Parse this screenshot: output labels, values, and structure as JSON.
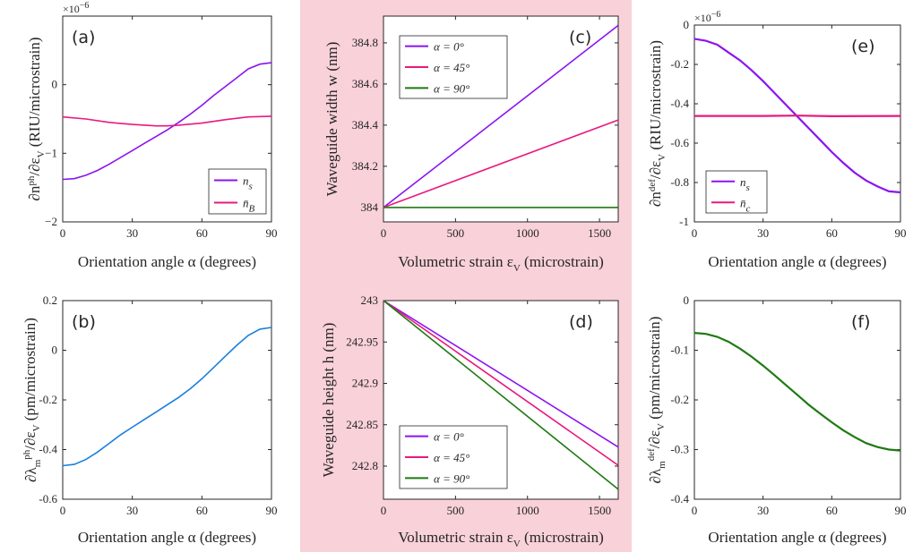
{
  "background": {
    "color": "#f9d1d9"
  },
  "chart_data": [
    {
      "id": "a",
      "type": "line",
      "panel_label": "(a)",
      "xlabel": "Orientation angle α (degrees)",
      "ylabel": "∂n^ph/∂ε_V (RIU/microstrain)",
      "xlim": [
        0,
        90
      ],
      "ylim": [
        -2,
        1
      ],
      "xticks": [
        "0",
        "30",
        "60",
        "90"
      ],
      "yticks": [
        "-2",
        "-1",
        "0"
      ],
      "yticklabels": [
        "−2",
        "−1",
        "0"
      ],
      "exponent_label": "×10^−6",
      "legend": "bottom-right",
      "series": [
        {
          "name": "n_s",
          "color": "#8b14f0",
          "x": [
            0,
            5,
            10,
            15,
            20,
            25,
            30,
            35,
            40,
            45,
            50,
            55,
            60,
            65,
            70,
            75,
            80,
            85,
            90
          ],
          "y": [
            -1.38,
            -1.37,
            -1.32,
            -1.25,
            -1.16,
            -1.06,
            -0.96,
            -0.86,
            -0.76,
            -0.66,
            -0.55,
            -0.43,
            -0.3,
            -0.16,
            -0.03,
            0.1,
            0.23,
            0.3,
            0.32
          ]
        },
        {
          "name": "n̄_B",
          "color": "#e8197e",
          "x": [
            0,
            10,
            20,
            30,
            40,
            45,
            50,
            60,
            70,
            80,
            90
          ],
          "y": [
            -0.47,
            -0.5,
            -0.55,
            -0.58,
            -0.6,
            -0.6,
            -0.59,
            -0.56,
            -0.51,
            -0.47,
            -0.46
          ]
        }
      ]
    },
    {
      "id": "b",
      "type": "line",
      "panel_label": "(b)",
      "xlabel": "Orientation angle α (degrees)",
      "ylabel": "∂λ_m^ph/∂ε_V (pm/microstrain)",
      "xlim": [
        0,
        90
      ],
      "ylim": [
        -0.6,
        0.2
      ],
      "xticks": [
        "0",
        "30",
        "60",
        "90"
      ],
      "yticks": [
        "-0.6",
        "-0.4",
        "-0.2",
        "0",
        "0.2"
      ],
      "yticklabels": [
        "-0.6",
        "-0.4",
        "-0.2",
        "0",
        "0.2"
      ],
      "series": [
        {
          "name": "",
          "color": "#1a7fe0",
          "x": [
            0,
            5,
            10,
            15,
            20,
            25,
            30,
            35,
            40,
            45,
            50,
            55,
            60,
            65,
            70,
            75,
            80,
            85,
            90
          ],
          "y": [
            -0.465,
            -0.46,
            -0.44,
            -0.41,
            -0.375,
            -0.34,
            -0.31,
            -0.28,
            -0.25,
            -0.22,
            -0.19,
            -0.155,
            -0.115,
            -0.07,
            -0.025,
            0.02,
            0.06,
            0.085,
            0.092
          ]
        }
      ]
    },
    {
      "id": "c",
      "type": "line",
      "panel_label": "(c)",
      "xlabel": "Volumetric strain ε_V (microstrain)",
      "ylabel": "Waveguide width w (nm)",
      "xlim": [
        0,
        1630
      ],
      "ylim": [
        383.93,
        384.93
      ],
      "xticks": [
        "0",
        "500",
        "1000",
        "1500"
      ],
      "yticks": [
        "384",
        "384.2",
        "384.4",
        "384.6",
        "384.8"
      ],
      "yticklabels": [
        "384",
        "384.2",
        "384.4",
        "384.6",
        "384.8"
      ],
      "legend": "top-left",
      "series": [
        {
          "name": "α = 0°",
          "color": "#8b14f0",
          "x": [
            0,
            1630
          ],
          "y": [
            384.0,
            384.885
          ]
        },
        {
          "name": "α = 45°",
          "color": "#e8197e",
          "x": [
            0,
            1630
          ],
          "y": [
            384.0,
            384.425
          ]
        },
        {
          "name": "α = 90°",
          "color": "#1e7a12",
          "x": [
            0,
            1630
          ],
          "y": [
            384.0,
            384.0
          ]
        }
      ]
    },
    {
      "id": "d",
      "type": "line",
      "panel_label": "(d)",
      "xlabel": "Volumetric strain ε_V (microstrain)",
      "ylabel": "Waveguide height h (nm)",
      "xlim": [
        0,
        1630
      ],
      "ylim": [
        242.76,
        243.0
      ],
      "xticks": [
        "0",
        "500",
        "1000",
        "1500"
      ],
      "yticks": [
        "242.8",
        "242.85",
        "242.9",
        "242.95",
        "243"
      ],
      "yticklabels": [
        "242.8",
        "242.85",
        "242.9",
        "242.95",
        "243"
      ],
      "legend": "bottom-left",
      "series": [
        {
          "name": "α = 0°",
          "color": "#8b14f0",
          "x": [
            0,
            1630
          ],
          "y": [
            243.0,
            242.823
          ]
        },
        {
          "name": "α = 45°",
          "color": "#e8197e",
          "x": [
            0,
            1630
          ],
          "y": [
            243.0,
            242.801
          ]
        },
        {
          "name": "α = 90°",
          "color": "#1e7a12",
          "x": [
            0,
            1630
          ],
          "y": [
            243.0,
            242.772
          ]
        }
      ]
    },
    {
      "id": "e",
      "type": "line",
      "panel_label": "(e)",
      "xlabel": "Orientation angle α (degrees)",
      "ylabel": "∂n^def/∂ε_V (RIU/microstrain)",
      "xlim": [
        0,
        90
      ],
      "ylim": [
        -1,
        0
      ],
      "xticks": [
        "0",
        "30",
        "60",
        "90"
      ],
      "yticks": [
        "-1",
        "-0.8",
        "-0.6",
        "-0.4",
        "-0.2",
        "0"
      ],
      "yticklabels": [
        "-1",
        "-0.8",
        "-0.6",
        "-0.4",
        "-0.2",
        "0"
      ],
      "exponent_label": "×10^−6",
      "legend": "bottom-left",
      "series": [
        {
          "name": "n_s",
          "color": "#8b14f0",
          "x": [
            0,
            5,
            10,
            15,
            20,
            25,
            30,
            35,
            40,
            45,
            50,
            55,
            60,
            65,
            70,
            75,
            80,
            85,
            90
          ],
          "y": [
            -0.07,
            -0.08,
            -0.1,
            -0.14,
            -0.18,
            -0.23,
            -0.285,
            -0.345,
            -0.405,
            -0.465,
            -0.525,
            -0.585,
            -0.645,
            -0.7,
            -0.75,
            -0.79,
            -0.82,
            -0.845,
            -0.85
          ]
        },
        {
          "name": "n̄_c",
          "color": "#e8197e",
          "x": [
            0,
            30,
            45,
            60,
            90
          ],
          "y": [
            -0.462,
            -0.462,
            -0.46,
            -0.463,
            -0.462
          ]
        }
      ]
    },
    {
      "id": "f",
      "type": "line",
      "panel_label": "(f)",
      "xlabel": "Orientation angle α (degrees)",
      "ylabel": "∂λ_m^def/∂ε_V (pm/microstrain)",
      "xlim": [
        0,
        90
      ],
      "ylim": [
        -0.4,
        0
      ],
      "xticks": [
        "0",
        "30",
        "60",
        "90"
      ],
      "yticks": [
        "-0.4",
        "-0.3",
        "-0.2",
        "-0.1",
        "0"
      ],
      "yticklabels": [
        "-0.4",
        "-0.3",
        "-0.2",
        "-0.1",
        "0"
      ],
      "series": [
        {
          "name": "",
          "color": "#1e7a12",
          "x": [
            0,
            5,
            10,
            15,
            20,
            25,
            30,
            35,
            40,
            45,
            50,
            55,
            60,
            65,
            70,
            75,
            80,
            85,
            90
          ],
          "y": [
            -0.065,
            -0.067,
            -0.073,
            -0.083,
            -0.097,
            -0.113,
            -0.131,
            -0.15,
            -0.17,
            -0.19,
            -0.21,
            -0.228,
            -0.245,
            -0.261,
            -0.275,
            -0.287,
            -0.295,
            -0.3,
            -0.302
          ]
        }
      ]
    }
  ]
}
